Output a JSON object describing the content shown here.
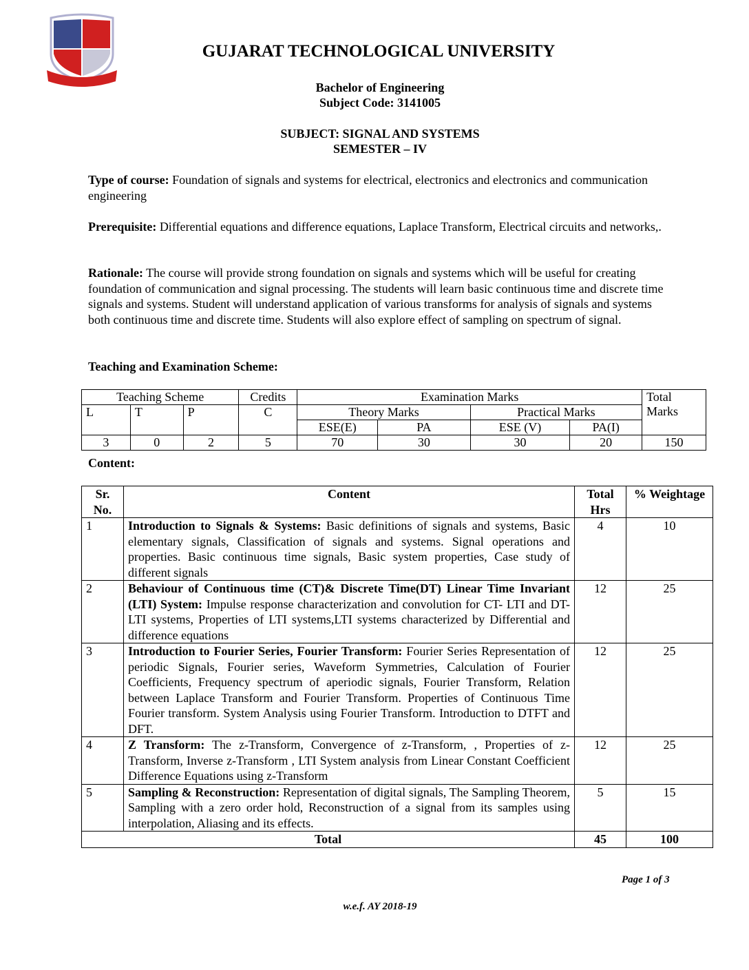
{
  "header": {
    "logo_alt": "GTU emblem",
    "logo_text": "Gujarat Technological University motto",
    "university": "GUJARAT TECHNOLOGICAL UNIVERSITY",
    "degree": "Bachelor of Engineering",
    "subject_code": "Subject Code: 3141005",
    "subject": "SUBJECT: SIGNAL AND SYSTEMS",
    "semester": "SEMESTER – IV"
  },
  "sections": {
    "type_label": "Type of course:",
    "type_text": " Foundation of signals and systems for electrical, electronics and electronics and communication engineering",
    "prereq_label": "Prerequisite:",
    "prereq_text": "  Differential equations and difference equations, Laplace Transform, Electrical circuits and networks,.",
    "rationale_label": "Rationale:",
    "rationale_text": " The course will provide strong foundation on signals and systems which will be useful for creating foundation of communication and signal processing. The students will learn basic continuous time and discrete time signals and systems. Student will understand application of various transforms for analysis of signals and systems both continuous time and discrete time. Students will also explore effect of sampling on spectrum of signal.",
    "scheme_heading": "Teaching and Examination Scheme:",
    "content_heading": "Content:"
  },
  "scheme": {
    "teaching": "Teaching Scheme",
    "credits": "Credits",
    "exam": "Examination Marks",
    "total": "Total Marks",
    "L": "L",
    "T": "T",
    "P": "P",
    "C": "C",
    "theory": "Theory Marks",
    "practical": "Practical Marks",
    "ese_e": "ESE(E)",
    "pa": "PA",
    "ese_v": "ESE (V)",
    "pa_i": "PA(I)",
    "values": [
      "3",
      "0",
      "2",
      "5",
      "70",
      "30",
      "30",
      "20",
      "150"
    ]
  },
  "content": {
    "headers": [
      "Sr. No.",
      "Content",
      "Total Hrs",
      "% Weightage"
    ],
    "rows": [
      {
        "sr": "1",
        "lead": "Introduction to Signals & Systems:",
        "text": " Basic definitions of signals and systems, Basic elementary signals, Classification of signals and systems. Signal operations and properties. Basic continuous time signals, Basic system properties, Case study of different signals",
        "hrs": "4",
        "weight": "10"
      },
      {
        "sr": "2",
        "lead": "Behaviour of Continuous time (CT)& Discrete Time(DT) Linear Time Invariant (LTI) System:",
        "text": " Impulse response characterization and convolution for CT- LTI and DT-LTI systems, Properties of  LTI systems,LTI systems characterized by Differential and difference equations",
        "hrs": "12",
        "weight": "25"
      },
      {
        "sr": "3",
        "lead": "Introduction to Fourier Series, Fourier Transform:",
        "text": " Fourier Series Representation of periodic Signals, Fourier series, Waveform Symmetries, Calculation of Fourier Coefficients, Frequency spectrum of aperiodic signals, Fourier Transform, Relation between Laplace Transform and Fourier Transform. Properties of Continuous Time Fourier transform. System Analysis using Fourier Transform. Introduction to DTFT and DFT.",
        "hrs": "12",
        "weight": "25"
      },
      {
        "sr": "4",
        "lead": "Z Transform:",
        "text": " The z-Transform, Convergence of z-Transform, , Properties of z-Transform, Inverse z-Transform , LTI System analysis from Linear Constant Coefficient Difference Equations using z-Transform",
        "hrs": "12",
        "weight": "25"
      },
      {
        "sr": "5",
        "lead": "Sampling & Reconstruction:",
        "text": " Representation of digital signals, The Sampling Theorem, Sampling with a zero order hold, Reconstruction of a signal from its samples using interpolation, Aliasing and its effects.",
        "hrs": "5",
        "weight": "15"
      }
    ],
    "total_label": "Total",
    "total_hrs": "45",
    "total_weight": "100"
  },
  "footer": {
    "page": "Page 1 of 3",
    "wef": "w.e.f. AY 2018-19"
  }
}
